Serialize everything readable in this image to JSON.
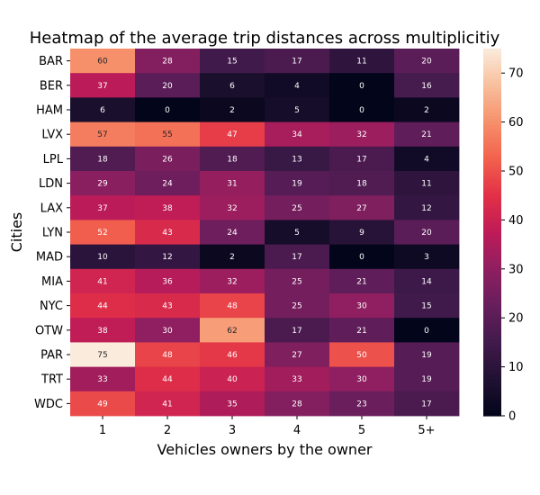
{
  "chart_data": {
    "type": "heatmap",
    "title": "Heatmap of the average trip distances across multiplicitiy",
    "xlabel": "Vehicles owners by the owner",
    "ylabel": "Cities",
    "x_categories": [
      "1",
      "2",
      "3",
      "4",
      "5",
      "5+"
    ],
    "y_categories": [
      "BAR",
      "BER",
      "HAM",
      "LVX",
      "LPL",
      "LDN",
      "LAX",
      "LYN",
      "MAD",
      "MIA",
      "NYC",
      "OTW",
      "PAR",
      "TRT",
      "WDC"
    ],
    "values": [
      [
        60,
        28,
        15,
        17,
        11,
        20
      ],
      [
        37,
        20,
        6,
        4,
        0,
        16
      ],
      [
        6,
        0,
        2,
        5,
        0,
        2
      ],
      [
        57,
        55,
        47,
        34,
        32,
        21
      ],
      [
        18,
        26,
        18,
        13,
        17,
        4
      ],
      [
        29,
        24,
        31,
        19,
        18,
        11
      ],
      [
        37,
        38,
        32,
        25,
        27,
        12
      ],
      [
        52,
        43,
        24,
        5,
        9,
        20
      ],
      [
        10,
        12,
        2,
        17,
        0,
        3
      ],
      [
        41,
        36,
        32,
        25,
        21,
        14
      ],
      [
        44,
        43,
        48,
        25,
        30,
        15
      ],
      [
        38,
        30,
        62,
        17,
        21,
        0
      ],
      [
        75,
        48,
        46,
        27,
        50,
        19
      ],
      [
        33,
        44,
        40,
        33,
        30,
        19
      ],
      [
        49,
        41,
        35,
        28,
        23,
        17
      ]
    ],
    "colorbar": {
      "min": 0,
      "max": 75,
      "ticks": [
        0,
        10,
        20,
        30,
        40,
        50,
        60,
        70
      ]
    },
    "colormap": "rocket",
    "annotations": true
  }
}
